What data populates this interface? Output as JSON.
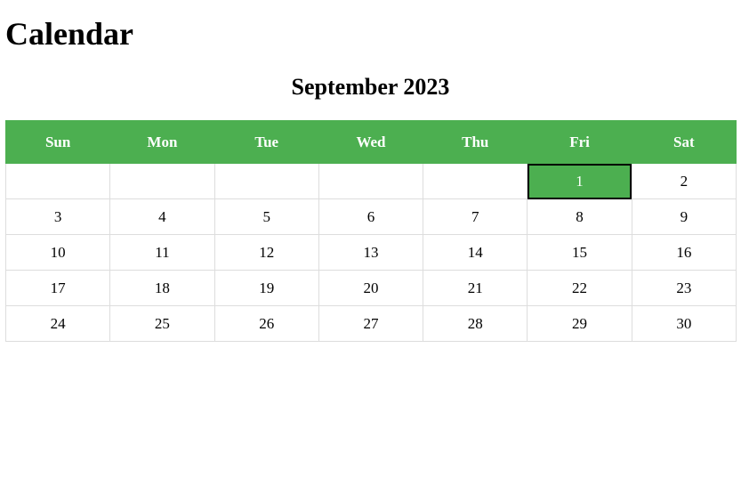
{
  "page": {
    "title": "Calendar"
  },
  "calendar": {
    "month_label": "September 2023",
    "weekdays": [
      "Sun",
      "Mon",
      "Tue",
      "Wed",
      "Thu",
      "Fri",
      "Sat"
    ],
    "weeks": [
      [
        "",
        "",
        "",
        "",
        "",
        "1",
        "2"
      ],
      [
        "3",
        "4",
        "5",
        "6",
        "7",
        "8",
        "9"
      ],
      [
        "10",
        "11",
        "12",
        "13",
        "14",
        "15",
        "16"
      ],
      [
        "17",
        "18",
        "19",
        "20",
        "21",
        "22",
        "23"
      ],
      [
        "24",
        "25",
        "26",
        "27",
        "28",
        "29",
        "30"
      ]
    ],
    "selected_day": "1",
    "colors": {
      "header_bg": "#4caf50",
      "header_text": "#ffffff",
      "selected_bg": "#4caf50",
      "selected_border": "#000000",
      "grid_border": "#dddddd"
    }
  }
}
